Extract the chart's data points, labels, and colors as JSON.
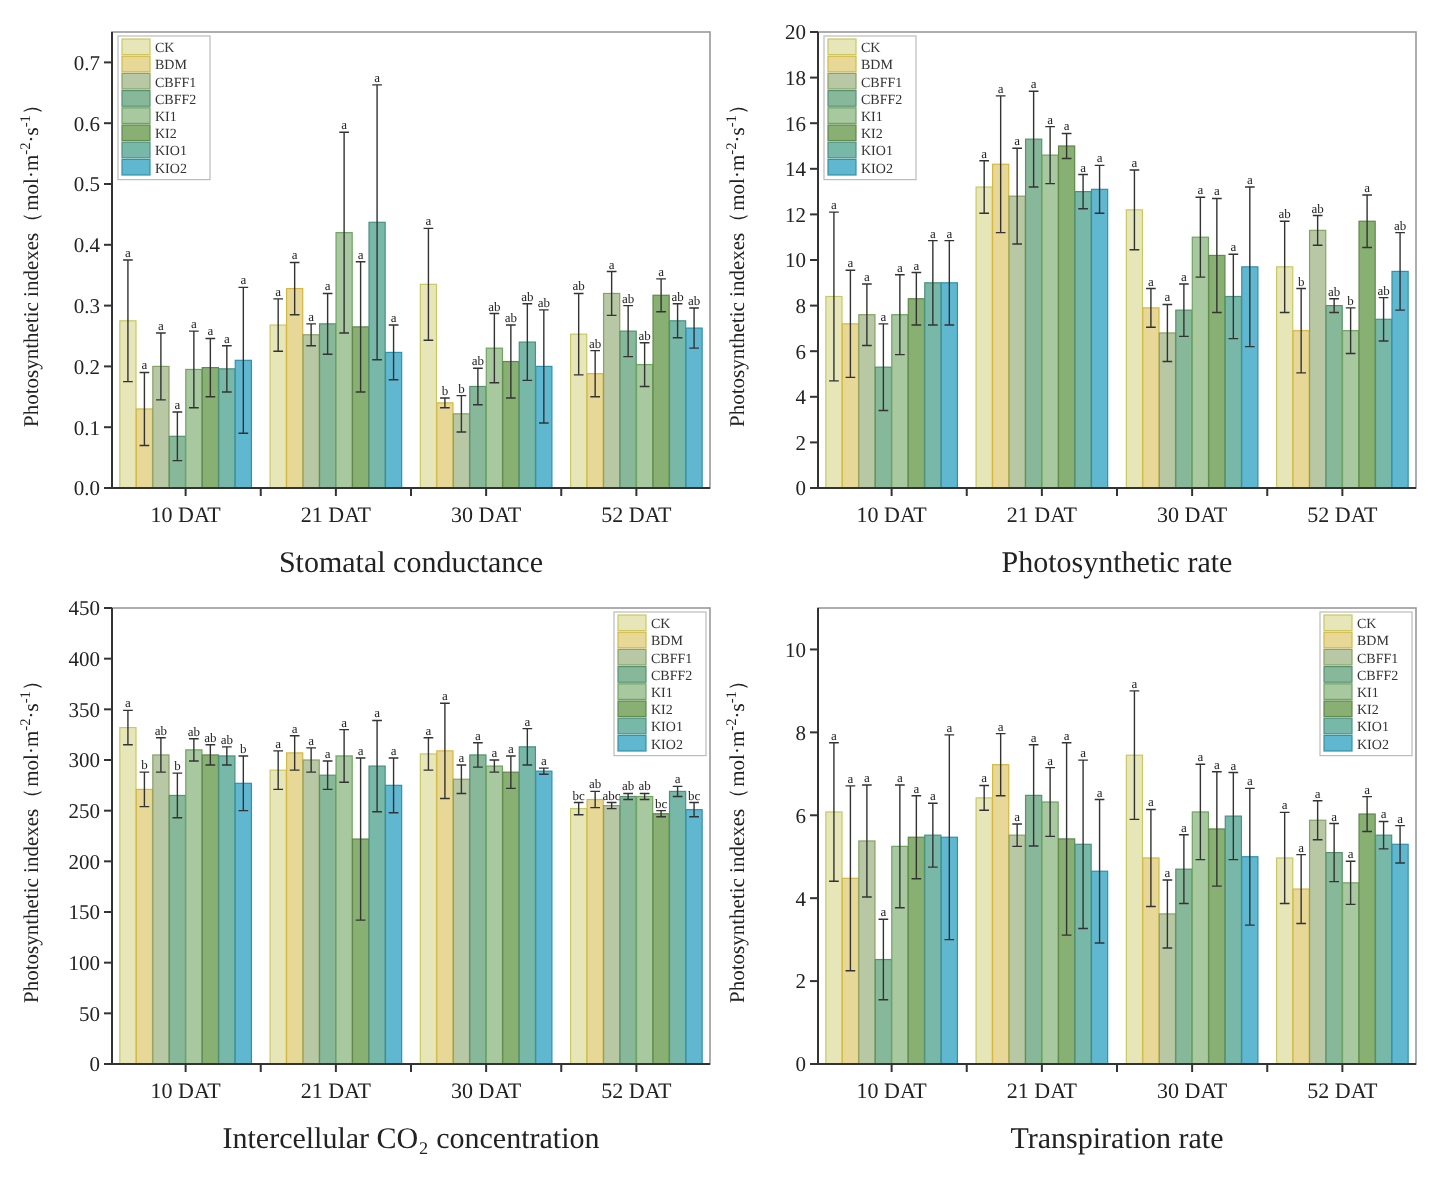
{
  "chart_data": [
    {
      "type": "bar",
      "xlabel": "Stomatal conductance",
      "ylabel": "Photosynthetic indexes（mol·m$^{-2}$·s$^{-1}$）",
      "categories": [
        "10 DAT",
        "21 DAT",
        "30 DAT",
        "52 DAT"
      ],
      "ylim": [
        0,
        0.75
      ],
      "yticks": [
        {
          "value": 0,
          "label": "0.0"
        },
        0.1,
        0.2,
        0.3,
        0.4,
        0.5,
        0.6,
        0.7
      ],
      "legend": "top left",
      "grid": false,
      "annotations": [
        "a",
        "a",
        "a",
        "ab",
        "a",
        "a",
        "b",
        "ab",
        "a",
        "a",
        "b",
        "a",
        "a",
        "a",
        "ab",
        "ab",
        "a",
        "a",
        "ab",
        "ab",
        "a",
        "a",
        "ab",
        "a",
        "a",
        "a",
        "ab",
        "ab",
        "a",
        "a",
        "ab",
        "ab"
      ],
      "series": [
        {
          "name": "CK",
          "color": "#e6e6b8",
          "values": [
            0.275,
            0.268,
            0.335,
            0.253
          ],
          "errors": [
            0.1,
            0.043,
            0.092,
            0.067
          ]
        },
        {
          "name": "BDM",
          "color": "#e8d898",
          "values": [
            0.13,
            0.328,
            0.14,
            0.188
          ],
          "errors": [
            0.06,
            0.043,
            0.008,
            0.038
          ]
        },
        {
          "name": "CBFF1",
          "color": "#b8c8a4",
          "values": [
            0.2,
            0.252,
            0.122,
            0.32
          ],
          "errors": [
            0.055,
            0.018,
            0.03,
            0.036
          ]
        },
        {
          "name": "CBFF2",
          "color": "#88b89a",
          "values": [
            0.085,
            0.27,
            0.167,
            0.258
          ],
          "errors": [
            0.04,
            0.05,
            0.03,
            0.042
          ]
        },
        {
          "name": "KI1",
          "color": "#a8c8a0",
          "values": [
            0.195,
            0.42,
            0.23,
            0.203
          ],
          "errors": [
            0.063,
            0.165,
            0.057,
            0.036
          ]
        },
        {
          "name": "KI2",
          "color": "#88b072",
          "values": [
            0.198,
            0.265,
            0.208,
            0.317
          ],
          "errors": [
            0.048,
            0.107,
            0.06,
            0.027
          ]
        },
        {
          "name": "KIO1",
          "color": "#78b8a8",
          "values": [
            0.196,
            0.437,
            0.24,
            0.275
          ],
          "errors": [
            0.038,
            0.226,
            0.063,
            0.028
          ]
        },
        {
          "name": "KIO2",
          "color": "#60b8d0",
          "values": [
            0.21,
            0.223,
            0.2,
            0.263
          ],
          "errors": [
            0.12,
            0.045,
            0.093,
            0.033
          ]
        }
      ]
    },
    {
      "type": "bar",
      "xlabel": "Photosynthetic rate",
      "ylabel": "Photosynthetic indexes（mol·m$^{-2}$·s$^{-1}$）",
      "categories": [
        "10 DAT",
        "21 DAT",
        "30 DAT",
        "52 DAT"
      ],
      "ylim": [
        0,
        20
      ],
      "yticks": [
        0,
        2,
        4,
        6,
        8,
        10,
        12,
        14,
        16,
        18,
        20
      ],
      "legend": "top left",
      "grid": false,
      "annotations": [
        "a",
        "a",
        "a",
        "ab",
        "a",
        "a",
        "a",
        "b",
        "a",
        "a",
        "a",
        "ab",
        "a",
        "a",
        "a",
        "ab",
        "a",
        "a",
        "a",
        "b",
        "a",
        "a",
        "a",
        "a",
        "a",
        "a",
        "a",
        "ab",
        "a",
        "a",
        "a",
        "ab"
      ],
      "series": [
        {
          "name": "CK",
          "color": "#e6e6b8",
          "values": [
            8.4,
            13.2,
            12.2,
            9.7
          ],
          "errors": [
            3.7,
            1.15,
            1.75,
            2.0
          ]
        },
        {
          "name": "BDM",
          "color": "#e8d898",
          "values": [
            7.2,
            14.2,
            7.9,
            6.9
          ],
          "errors": [
            2.35,
            3.0,
            0.85,
            1.85
          ]
        },
        {
          "name": "CBFF1",
          "color": "#b8c8a4",
          "values": [
            7.6,
            12.8,
            6.8,
            11.3
          ],
          "errors": [
            1.35,
            2.1,
            1.25,
            0.65
          ]
        },
        {
          "name": "CBFF2",
          "color": "#88b89a",
          "values": [
            5.3,
            15.3,
            7.8,
            8.0
          ],
          "errors": [
            1.9,
            2.1,
            1.15,
            0.3
          ]
        },
        {
          "name": "KI1",
          "color": "#a8c8a0",
          "values": [
            7.6,
            14.6,
            11.0,
            6.9
          ],
          "errors": [
            1.75,
            1.25,
            1.75,
            1.0
          ]
        },
        {
          "name": "KI2",
          "color": "#88b072",
          "values": [
            8.3,
            15.0,
            10.2,
            11.7
          ],
          "errors": [
            1.15,
            0.55,
            2.5,
            1.15
          ]
        },
        {
          "name": "KIO1",
          "color": "#78b8a8",
          "values": [
            9.0,
            13.0,
            8.4,
            7.4
          ],
          "errors": [
            1.85,
            0.75,
            1.85,
            0.95
          ]
        },
        {
          "name": "KIO2",
          "color": "#60b8d0",
          "values": [
            9.0,
            13.1,
            9.7,
            9.5
          ],
          "errors": [
            1.85,
            1.05,
            3.5,
            1.7
          ]
        }
      ]
    },
    {
      "type": "bar",
      "xlabel": "Intercellular CO₂ concentration",
      "ylabel": "Photosynthetic indexes（mol·m$^{-2}$·s$^{-1}$）",
      "categories": [
        "10 DAT",
        "21 DAT",
        "30 DAT",
        "52 DAT"
      ],
      "ylim": [
        0,
        450
      ],
      "yticks": [
        0,
        50,
        100,
        150,
        200,
        250,
        300,
        350,
        400,
        450
      ],
      "legend": "top right",
      "grid": false,
      "annotations": [
        "a",
        "a",
        "a",
        "bc",
        "b",
        "a",
        "a",
        "ab",
        "ab",
        "a",
        "a",
        "abc",
        "b",
        "a",
        "a",
        "ab",
        "ab",
        "a",
        "a",
        "ab",
        "ab",
        "a",
        "a",
        "bc",
        "ab",
        "a",
        "a",
        "a",
        "b",
        "a",
        "a",
        "bc"
      ],
      "series": [
        {
          "name": "CK",
          "color": "#e6e6b8",
          "values": [
            332,
            290,
            306,
            252
          ],
          "errors": [
            17,
            19,
            16,
            6
          ]
        },
        {
          "name": "BDM",
          "color": "#e8d898",
          "values": [
            271,
            307,
            309,
            261
          ],
          "errors": [
            17,
            17,
            47,
            8
          ]
        },
        {
          "name": "CBFF1",
          "color": "#b8c8a4",
          "values": [
            305,
            300,
            281,
            255
          ],
          "errors": [
            17,
            12,
            14,
            3
          ]
        },
        {
          "name": "CBFF2",
          "color": "#88b89a",
          "values": [
            265,
            285,
            305,
            264
          ],
          "errors": [
            22,
            14,
            12,
            3
          ]
        },
        {
          "name": "KI1",
          "color": "#a8c8a0",
          "values": [
            310,
            304,
            294,
            264
          ],
          "errors": [
            11,
            26,
            6,
            3
          ]
        },
        {
          "name": "KI2",
          "color": "#88b072",
          "values": [
            305,
            222,
            288,
            247
          ],
          "errors": [
            10,
            80,
            16,
            3
          ]
        },
        {
          "name": "KIO1",
          "color": "#78b8a8",
          "values": [
            304,
            294,
            313,
            269
          ],
          "errors": [
            9,
            45,
            18,
            5
          ]
        },
        {
          "name": "KIO2",
          "color": "#60b8d0",
          "values": [
            277,
            275,
            289,
            251
          ],
          "errors": [
            27,
            27,
            3,
            7
          ]
        }
      ]
    },
    {
      "type": "bar",
      "xlabel": "Transpiration rate",
      "ylabel": "Photosynthetic indexes（mol·m$^{-2}$·s$^{-1}$）",
      "categories": [
        "10 DAT",
        "21 DAT",
        "30 DAT",
        "52 DAT"
      ],
      "ylim": [
        0,
        11
      ],
      "yticks": [
        0,
        2,
        4,
        6,
        8,
        10
      ],
      "legend": "top right",
      "grid": false,
      "annotations": [
        "a",
        "a",
        "a",
        "a",
        "a",
        "a",
        "a",
        "a",
        "a",
        "a",
        "a",
        "a",
        "a",
        "a",
        "a",
        "a",
        "a",
        "a",
        "a",
        "a",
        "a",
        "a",
        "a",
        "a",
        "a",
        "a",
        "a",
        "a",
        "a",
        "a",
        "a",
        "a"
      ],
      "series": [
        {
          "name": "CK",
          "color": "#e6e6b8",
          "values": [
            6.08,
            6.42,
            7.45,
            4.97
          ],
          "errors": [
            1.67,
            0.3,
            1.55,
            1.1
          ]
        },
        {
          "name": "BDM",
          "color": "#e8d898",
          "values": [
            4.48,
            7.22,
            4.97,
            4.22
          ],
          "errors": [
            2.23,
            0.75,
            1.17,
            0.83
          ]
        },
        {
          "name": "CBFF1",
          "color": "#b8c8a4",
          "values": [
            5.38,
            5.52,
            3.62,
            5.88
          ],
          "errors": [
            1.35,
            0.27,
            0.82,
            0.47
          ]
        },
        {
          "name": "CBFF2",
          "color": "#88b89a",
          "values": [
            2.52,
            6.48,
            4.7,
            5.1
          ],
          "errors": [
            0.97,
            1.22,
            0.83,
            0.7
          ]
        },
        {
          "name": "KI1",
          "color": "#a8c8a0",
          "values": [
            5.25,
            6.32,
            6.08,
            4.37
          ],
          "errors": [
            1.48,
            0.83,
            1.15,
            0.52
          ]
        },
        {
          "name": "KI2",
          "color": "#88b072",
          "values": [
            5.47,
            5.43,
            5.67,
            6.03
          ],
          "errors": [
            1.0,
            2.32,
            1.38,
            0.42
          ]
        },
        {
          "name": "KIO1",
          "color": "#78b8a8",
          "values": [
            5.52,
            5.3,
            5.98,
            5.52
          ],
          "errors": [
            0.77,
            2.03,
            1.05,
            0.33
          ]
        },
        {
          "name": "KIO2",
          "color": "#60b8d0",
          "values": [
            5.47,
            4.65,
            5.0,
            5.3
          ],
          "errors": [
            2.47,
            1.73,
            1.65,
            0.45
          ]
        }
      ]
    }
  ]
}
